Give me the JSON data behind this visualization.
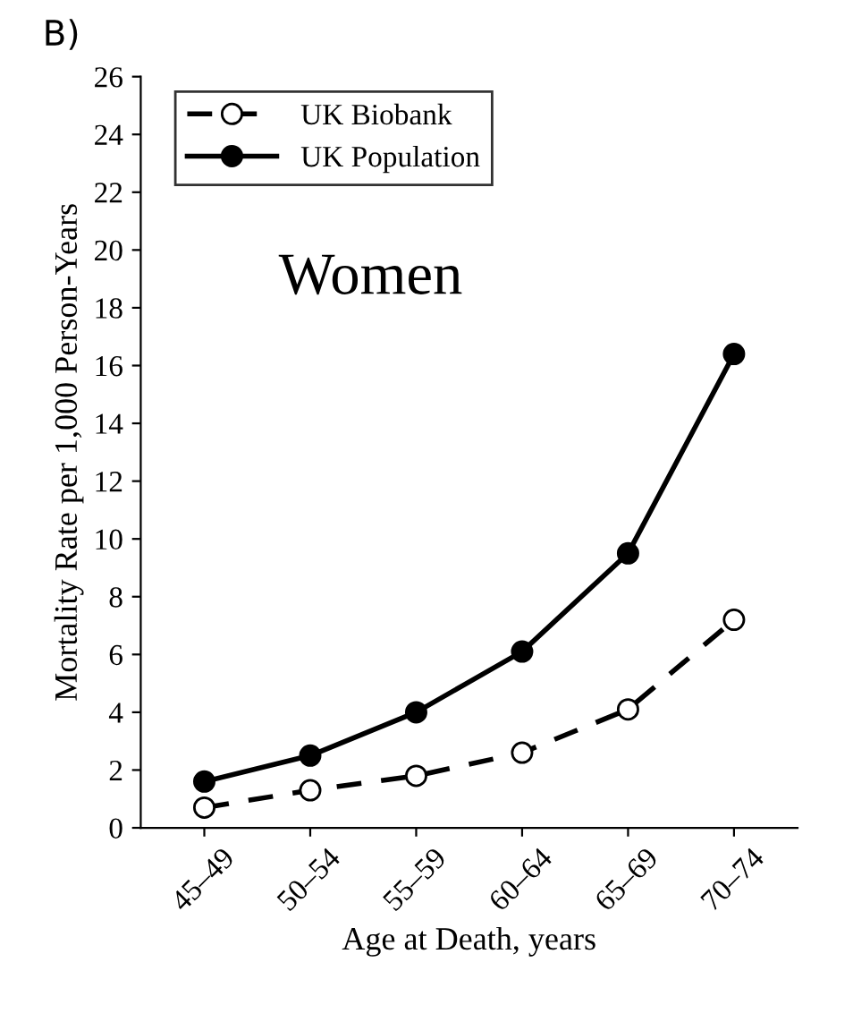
{
  "chart_data": {
    "type": "line",
    "title": "B)",
    "xlabel": "Age at Death, years",
    "ylabel": "Mortality Rate per 1,000 Person-Years",
    "categories": [
      "45–49",
      "50–54",
      "55–59",
      "60–64",
      "65–69",
      "70–74"
    ],
    "series": [
      {
        "name": "UK Biobank",
        "color": "#000000",
        "line_style": "dashed",
        "marker": "circle",
        "values": [
          0.7,
          1.3,
          1.8,
          2.6,
          4.1,
          7.2
        ]
      },
      {
        "name": "UK Population",
        "color": "#000000",
        "line_style": "solid",
        "marker": "circle",
        "values": [
          1.6,
          2.5,
          4.0,
          6.1,
          9.5,
          16.4
        ]
      }
    ],
    "ylim": [
      0,
      26
    ],
    "yticks": [
      0,
      2,
      4,
      6,
      8,
      10,
      12,
      14,
      16,
      18,
      20,
      22,
      24,
      26
    ],
    "annotations": [
      "Women"
    ],
    "legend": "top left",
    "grid": false
  }
}
